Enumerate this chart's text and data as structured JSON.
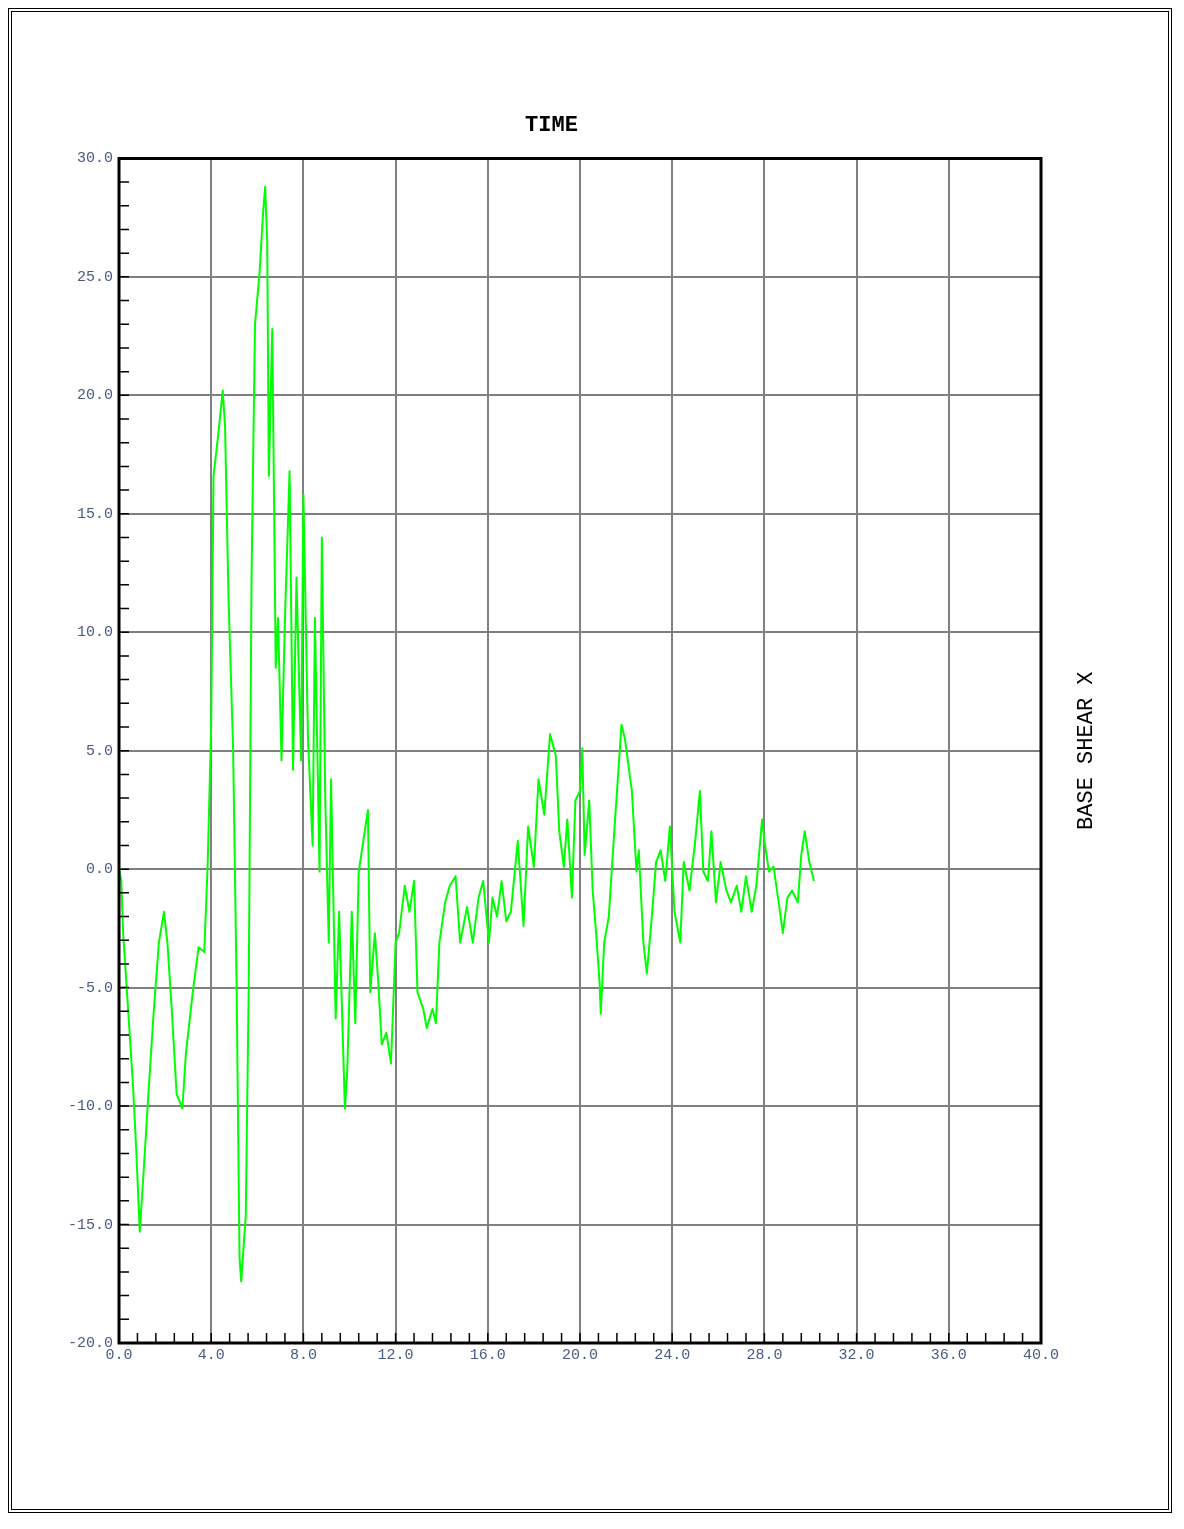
{
  "chart_data": {
    "type": "line",
    "title": "TIME",
    "ylabel": "BASE SHEAR X",
    "x": [
      0,
      0.1,
      0.18,
      0.4,
      0.6,
      0.75,
      0.9,
      1.06,
      1.3,
      1.5,
      1.73,
      1.95,
      2.1,
      2.3,
      2.5,
      2.75,
      2.9,
      3.2,
      3.45,
      3.7,
      3.85,
      4.0,
      4.1,
      4.3,
      4.5,
      4.6,
      4.75,
      4.95,
      5.1,
      5.23,
      5.3,
      5.5,
      5.63,
      5.75,
      5.9,
      6.1,
      6.25,
      6.34,
      6.43,
      6.5,
      6.65,
      6.8,
      6.9,
      7.05,
      7.2,
      7.4,
      7.55,
      7.7,
      7.9,
      8.0,
      8.2,
      8.4,
      8.5,
      8.7,
      8.8,
      8.95,
      9.1,
      9.2,
      9.4,
      9.55,
      9.8,
      9.9,
      10.1,
      10.25,
      10.4,
      10.6,
      10.8,
      10.9,
      11.1,
      11.25,
      11.4,
      11.6,
      11.8,
      12.0,
      12.15,
      12.4,
      12.6,
      12.8,
      12.95,
      13.2,
      13.35,
      13.6,
      13.75,
      13.9,
      14.15,
      14.35,
      14.6,
      14.8,
      15.1,
      15.35,
      15.6,
      15.8,
      16.05,
      16.2,
      16.4,
      16.6,
      16.8,
      17.0,
      17.3,
      17.55,
      17.75,
      18.0,
      18.2,
      18.45,
      18.7,
      18.95,
      19.1,
      19.3,
      19.45,
      19.65,
      19.8,
      20.0,
      20.1,
      20.2,
      20.4,
      20.55,
      20.7,
      20.85,
      20.9,
      21.05,
      21.25,
      21.4,
      21.55,
      21.8,
      21.95,
      22.1,
      22.25,
      22.45,
      22.55,
      22.75,
      22.9,
      23.1,
      23.3,
      23.5,
      23.7,
      23.9,
      24.1,
      24.35,
      24.5,
      24.75,
      25.0,
      25.2,
      25.35,
      25.55,
      25.7,
      25.9,
      26.1,
      26.35,
      26.55,
      26.8,
      27.0,
      27.2,
      27.45,
      27.65,
      27.9,
      28.0,
      28.2,
      28.4,
      28.65,
      28.8,
      29.0,
      29.2,
      29.45,
      29.6,
      29.75,
      29.95,
      30.15
    ],
    "series": [
      {
        "color": "#00ff00",
        "values": [
          0,
          -0.5,
          -2.7,
          -6,
          -9,
          -11.9,
          -15.3,
          -12.9,
          -9.1,
          -6.1,
          -3.1,
          -1.8,
          -3.1,
          -6.1,
          -9.5,
          -10.1,
          -7.8,
          -5.2,
          -3.3,
          -3.5,
          0.3,
          6.1,
          16.6,
          18.3,
          20.2,
          18.7,
          11.5,
          5.1,
          -4.8,
          -16.4,
          -17.4,
          -14.6,
          -4.8,
          12.3,
          23,
          25.2,
          27.7,
          28.8,
          26.5,
          16.6,
          22.8,
          8.5,
          10.6,
          4.6,
          10.6,
          16.8,
          4.2,
          12.3,
          4.6,
          15.8,
          5.5,
          1,
          10.6,
          -0.1,
          14,
          2.9,
          -3.1,
          3.8,
          -6.3,
          -1.8,
          -10.1,
          -8.6,
          -1.8,
          -6.5,
          -0.1,
          1.2,
          2.5,
          -5.2,
          -2.7,
          -4.8,
          -7.4,
          -6.9,
          -8.2,
          -3.1,
          -2.7,
          -0.7,
          -1.8,
          -0.5,
          -5.2,
          -5.9,
          -6.7,
          -5.9,
          -6.5,
          -3.1,
          -1.4,
          -0.7,
          -0.3,
          -3.1,
          -1.6,
          -3.1,
          -1.2,
          -0.5,
          -3.1,
          -1.2,
          -2,
          -0.5,
          -2.2,
          -1.8,
          1.2,
          -2.4,
          1.8,
          0.1,
          3.8,
          2.3,
          5.7,
          4.8,
          1.6,
          0.1,
          2.1,
          -1.2,
          2.9,
          3.3,
          5.1,
          0.6,
          2.9,
          -0.9,
          -2.7,
          -4.8,
          -6.1,
          -3.1,
          -2,
          0.3,
          2.5,
          6.1,
          5.5,
          4.4,
          3.3,
          -0.1,
          0.8,
          -3.1,
          -4.4,
          -2.2,
          0.3,
          0.8,
          -0.5,
          1.8,
          -1.8,
          -3.1,
          0.3,
          -0.9,
          1.2,
          3.3,
          -0.1,
          -0.5,
          1.6,
          -1.4,
          0.3,
          -0.9,
          -1.4,
          -0.7,
          -1.8,
          -0.3,
          -1.8,
          -0.7,
          2.1,
          1.2,
          -0.1,
          0.1,
          -1.6,
          -2.7,
          -1.2,
          -0.9,
          -1.4,
          0.6,
          1.6,
          0.3,
          -0.5
        ]
      }
    ],
    "xlim": [
      0,
      40
    ],
    "xticks": [
      {
        "value": 0,
        "label": "0.0"
      },
      {
        "value": 0.8,
        "label": null
      },
      {
        "value": 1.6,
        "label": null
      },
      {
        "value": 2.4,
        "label": null
      },
      {
        "value": 3.2,
        "label": null
      },
      {
        "value": 4,
        "label": "4.0"
      },
      {
        "value": 4.8,
        "label": null
      },
      {
        "value": 5.6,
        "label": null
      },
      {
        "value": 6.4,
        "label": null
      },
      {
        "value": 7.2,
        "label": null
      },
      {
        "value": 8,
        "label": "8.0"
      },
      {
        "value": 8.8,
        "label": null
      },
      {
        "value": 9.6,
        "label": null
      },
      {
        "value": 10.4,
        "label": null
      },
      {
        "value": 11.2,
        "label": null
      },
      {
        "value": 12,
        "label": "12.0"
      },
      {
        "value": 12.8,
        "label": null
      },
      {
        "value": 13.6,
        "label": null
      },
      {
        "value": 14.4,
        "label": null
      },
      {
        "value": 15.2,
        "label": null
      },
      {
        "value": 16,
        "label": "16.0"
      },
      {
        "value": 16.8,
        "label": null
      },
      {
        "value": 17.6,
        "label": null
      },
      {
        "value": 18.4,
        "label": null
      },
      {
        "value": 19.2,
        "label": null
      },
      {
        "value": 20,
        "label": "20.0"
      },
      {
        "value": 20.8,
        "label": null
      },
      {
        "value": 21.6,
        "label": null
      },
      {
        "value": 22.4,
        "label": null
      },
      {
        "value": 23.2,
        "label": null
      },
      {
        "value": 24,
        "label": "24.0"
      },
      {
        "value": 24.8,
        "label": null
      },
      {
        "value": 25.6,
        "label": null
      },
      {
        "value": 26.4,
        "label": null
      },
      {
        "value": 27.2,
        "label": null
      },
      {
        "value": 28,
        "label": "28.0"
      },
      {
        "value": 28.8,
        "label": null
      },
      {
        "value": 29.6,
        "label": null
      },
      {
        "value": 30.4,
        "label": null
      },
      {
        "value": 31.2,
        "label": null
      },
      {
        "value": 32,
        "label": "32.0"
      },
      {
        "value": 32.8,
        "label": null
      },
      {
        "value": 33.6,
        "label": null
      },
      {
        "value": 34.4,
        "label": null
      },
      {
        "value": 35.2,
        "label": null
      },
      {
        "value": 36,
        "label": "36.0"
      },
      {
        "value": 36.8,
        "label": null
      },
      {
        "value": 37.6,
        "label": null
      },
      {
        "value": 38.4,
        "label": null
      },
      {
        "value": 39.2,
        "label": null
      },
      {
        "value": 40,
        "label": "40.0"
      }
    ],
    "ylim": [
      -20,
      30
    ],
    "yticks": [
      {
        "value": -20,
        "label": "-20.0"
      },
      {
        "value": -19,
        "label": null
      },
      {
        "value": -18,
        "label": null
      },
      {
        "value": -17,
        "label": null
      },
      {
        "value": -16,
        "label": null
      },
      {
        "value": -15,
        "label": "-15.0"
      },
      {
        "value": -14,
        "label": null
      },
      {
        "value": -13,
        "label": null
      },
      {
        "value": -12,
        "label": null
      },
      {
        "value": -11,
        "label": null
      },
      {
        "value": -10,
        "label": "-10.0"
      },
      {
        "value": -9,
        "label": null
      },
      {
        "value": -8,
        "label": null
      },
      {
        "value": -7,
        "label": null
      },
      {
        "value": -6,
        "label": null
      },
      {
        "value": -5,
        "label": "-5.0"
      },
      {
        "value": -4,
        "label": null
      },
      {
        "value": -3,
        "label": null
      },
      {
        "value": -2,
        "label": null
      },
      {
        "value": -1,
        "label": null
      },
      {
        "value": 0,
        "label": "0.0"
      },
      {
        "value": 1,
        "label": null
      },
      {
        "value": 2,
        "label": null
      },
      {
        "value": 3,
        "label": null
      },
      {
        "value": 4,
        "label": null
      },
      {
        "value": 5,
        "label": "5.0"
      },
      {
        "value": 6,
        "label": null
      },
      {
        "value": 7,
        "label": null
      },
      {
        "value": 8,
        "label": null
      },
      {
        "value": 9,
        "label": null
      },
      {
        "value": 10,
        "label": "10.0"
      },
      {
        "value": 11,
        "label": null
      },
      {
        "value": 12,
        "label": null
      },
      {
        "value": 13,
        "label": null
      },
      {
        "value": 14,
        "label": null
      },
      {
        "value": 15,
        "label": "15.0"
      },
      {
        "value": 16,
        "label": null
      },
      {
        "value": 17,
        "label": null
      },
      {
        "value": 18,
        "label": null
      },
      {
        "value": 19,
        "label": null
      },
      {
        "value": 20,
        "label": "20.0"
      },
      {
        "value": 21,
        "label": null
      },
      {
        "value": 22,
        "label": null
      },
      {
        "value": 23,
        "label": null
      },
      {
        "value": 24,
        "label": null
      },
      {
        "value": 25,
        "label": "25.0"
      },
      {
        "value": 26,
        "label": null
      },
      {
        "value": 27,
        "label": null
      },
      {
        "value": 28,
        "label": null
      },
      {
        "value": 29,
        "label": null
      },
      {
        "value": 30,
        "label": "30.0"
      }
    ],
    "grid": true,
    "legend": false,
    "marker": "none",
    "line_style": "solid"
  }
}
